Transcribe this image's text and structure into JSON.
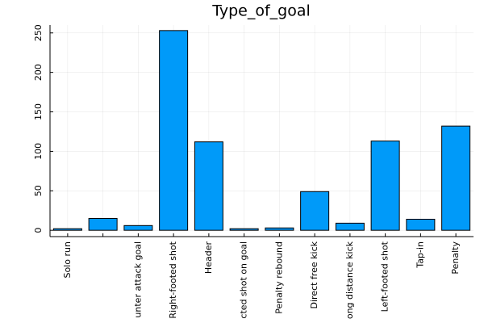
{
  "chart_data": {
    "type": "bar",
    "title": "Type_of_goal",
    "categories": [
      "Solo run",
      null,
      "unter attack goal",
      "Right-footed shot",
      "Header",
      "cted shot on goal",
      "Penalty rebound",
      "Direct free kick",
      "ong distance kick",
      "Left-footed shot",
      "Tap-in",
      "Penalty"
    ],
    "values": [
      2,
      15,
      6,
      253,
      112,
      2,
      3,
      49,
      9,
      113,
      14,
      132
    ],
    "color": "#009af9",
    "ylim": [
      -8,
      260
    ],
    "yticks": [
      0,
      50,
      100,
      150,
      200,
      250
    ],
    "grid": true
  }
}
